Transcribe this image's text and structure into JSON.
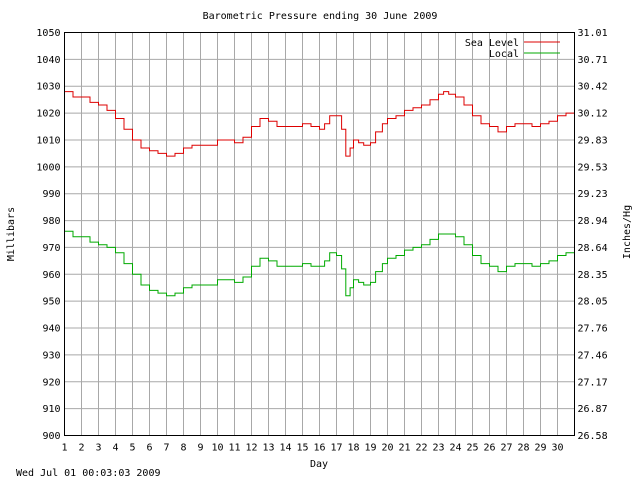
{
  "chart_data": {
    "type": "line",
    "title": "Barometric Pressure ending 30 June 2009",
    "xlabel": "Day",
    "ylabel": "Millibars",
    "y2label": "Inches/Hg",
    "footer": "Wed Jul 01 00:03:03 2009",
    "x_ticks": [
      "1",
      "2",
      "3",
      "4",
      "5",
      "6",
      "7",
      "8",
      "9",
      "10",
      "11",
      "12",
      "13",
      "14",
      "15",
      "16",
      "17",
      "18",
      "19",
      "20",
      "21",
      "22",
      "23",
      "24",
      "25",
      "26",
      "27",
      "28",
      "29",
      "30"
    ],
    "xlim": [
      1,
      31
    ],
    "ylim": [
      900,
      1050
    ],
    "y_ticks": [
      "900",
      "910",
      "920",
      "930",
      "940",
      "950",
      "960",
      "970",
      "980",
      "990",
      "1000",
      "1010",
      "1020",
      "1030",
      "1040",
      "1050"
    ],
    "y2_ticks": [
      "26.58",
      "26.87",
      "27.17",
      "27.46",
      "27.76",
      "28.05",
      "28.35",
      "28.64",
      "28.94",
      "29.23",
      "29.53",
      "29.83",
      "30.12",
      "30.42",
      "30.71",
      "31.01"
    ],
    "grid": true,
    "legend_position": "top-right",
    "series": [
      {
        "name": "Sea Level",
        "color": "#dd0000",
        "x": [
          1.0,
          1.25,
          1.5,
          2.0,
          2.5,
          3.0,
          3.5,
          4.0,
          4.5,
          5.0,
          5.5,
          6.0,
          6.5,
          7.0,
          7.25,
          7.5,
          8.0,
          8.5,
          9.0,
          9.5,
          10.0,
          10.5,
          11.0,
          11.5,
          12.0,
          12.5,
          13.0,
          13.5,
          14.0,
          14.5,
          15.0,
          15.5,
          16.0,
          16.3,
          16.6,
          17.0,
          17.3,
          17.55,
          17.8,
          18.0,
          18.3,
          18.6,
          19.0,
          19.3,
          19.7,
          20.0,
          20.5,
          21.0,
          21.5,
          22.0,
          22.5,
          23.0,
          23.3,
          23.6,
          24.0,
          24.5,
          25.0,
          25.5,
          26.0,
          26.5,
          26.8,
          27.0,
          27.5,
          28.0,
          28.5,
          29.0,
          29.5,
          30.0,
          30.5,
          31.0
        ],
        "values": [
          1028,
          1028,
          1026,
          1026,
          1024,
          1023,
          1021,
          1018,
          1014,
          1010,
          1007,
          1006,
          1005,
          1004,
          1004,
          1005,
          1007,
          1008,
          1008,
          1008,
          1010,
          1010,
          1009,
          1011,
          1015,
          1018,
          1017,
          1015,
          1015,
          1015,
          1016,
          1015,
          1014,
          1016,
          1019,
          1019,
          1014,
          1004,
          1007,
          1010,
          1009,
          1008,
          1009,
          1013,
          1016,
          1018,
          1019,
          1021,
          1022,
          1023,
          1025,
          1027,
          1028,
          1027,
          1026,
          1023,
          1019,
          1016,
          1015,
          1013,
          1013,
          1015,
          1016,
          1016,
          1015,
          1016,
          1017,
          1019,
          1020,
          1021
        ]
      },
      {
        "name": "Local",
        "color": "#00aa00",
        "x": [
          1.0,
          1.25,
          1.5,
          2.0,
          2.5,
          3.0,
          3.5,
          4.0,
          4.5,
          5.0,
          5.5,
          6.0,
          6.5,
          7.0,
          7.25,
          7.5,
          8.0,
          8.5,
          9.0,
          9.5,
          10.0,
          10.5,
          11.0,
          11.5,
          12.0,
          12.5,
          13.0,
          13.5,
          14.0,
          14.5,
          15.0,
          15.5,
          16.0,
          16.3,
          16.6,
          17.0,
          17.3,
          17.55,
          17.8,
          18.0,
          18.3,
          18.6,
          19.0,
          19.3,
          19.7,
          20.0,
          20.5,
          21.0,
          21.5,
          22.0,
          22.5,
          23.0,
          23.3,
          23.6,
          24.0,
          24.5,
          25.0,
          25.5,
          26.0,
          26.5,
          26.8,
          27.0,
          27.5,
          28.0,
          28.5,
          29.0,
          29.5,
          30.0,
          30.5,
          31.0
        ],
        "values": [
          976,
          976,
          974,
          974,
          972,
          971,
          970,
          968,
          964,
          960,
          956,
          954,
          953,
          952,
          952,
          953,
          955,
          956,
          956,
          956,
          958,
          958,
          957,
          959,
          963,
          966,
          965,
          963,
          963,
          963,
          964,
          963,
          963,
          965,
          968,
          967,
          962,
          952,
          955,
          958,
          957,
          956,
          957,
          961,
          964,
          966,
          967,
          969,
          970,
          971,
          973,
          975,
          975,
          975,
          974,
          971,
          967,
          964,
          963,
          961,
          961,
          963,
          964,
          964,
          963,
          964,
          965,
          967,
          968,
          969
        ]
      }
    ]
  }
}
